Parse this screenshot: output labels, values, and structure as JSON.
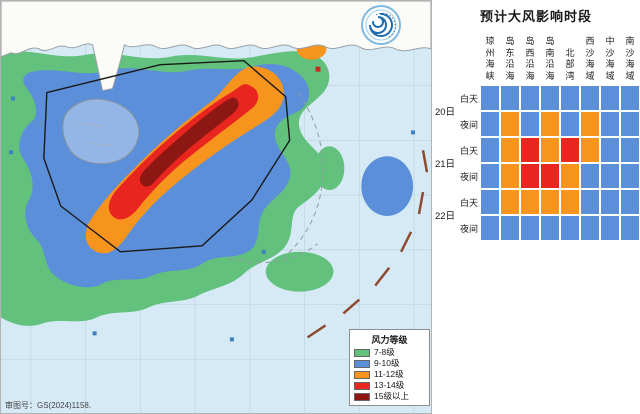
{
  "panel": {
    "title": "预计大风影响时段",
    "columns": [
      "琼州海峡",
      "岛东沿海",
      "岛西沿海",
      "岛南沿海",
      "北部湾",
      "西沙海域",
      "中沙海域",
      "南沙海域"
    ],
    "day_groups": [
      {
        "label": "20日"
      },
      {
        "label": "21日"
      },
      {
        "label": "22日"
      }
    ],
    "periods": [
      "白天",
      "夜间"
    ],
    "grid": [
      [
        "blue",
        "blue",
        "blue",
        "blue",
        "blue",
        "blue",
        "blue",
        "blue"
      ],
      [
        "blue",
        "orange",
        "blue",
        "orange",
        "blue",
        "orange",
        "blue",
        "blue"
      ],
      [
        "blue",
        "orange",
        "red",
        "orange",
        "red",
        "orange",
        "blue",
        "blue"
      ],
      [
        "blue",
        "orange",
        "red",
        "red",
        "orange",
        "blue",
        "blue",
        "blue"
      ],
      [
        "blue",
        "orange",
        "orange",
        "orange",
        "orange",
        "blue",
        "blue",
        "blue"
      ],
      [
        "blue",
        "blue",
        "blue",
        "blue",
        "blue",
        "blue",
        "blue",
        "blue"
      ]
    ],
    "cell_colors": {
      "blue": "#5b8fd9",
      "orange": "#f7941d",
      "red": "#e8251f"
    }
  },
  "map": {
    "credit": "审图号：GS(2024)1158.",
    "legend": {
      "title": "风力等级",
      "items": [
        {
          "label": "7-8级",
          "color": "#62c17d"
        },
        {
          "label": "9-10级",
          "color": "#5b8fd9"
        },
        {
          "label": "11-12级",
          "color": "#f7941d"
        },
        {
          "label": "13-14级",
          "color": "#e8251f"
        },
        {
          "label": "15级以上",
          "color": "#8c1713"
        }
      ]
    }
  }
}
